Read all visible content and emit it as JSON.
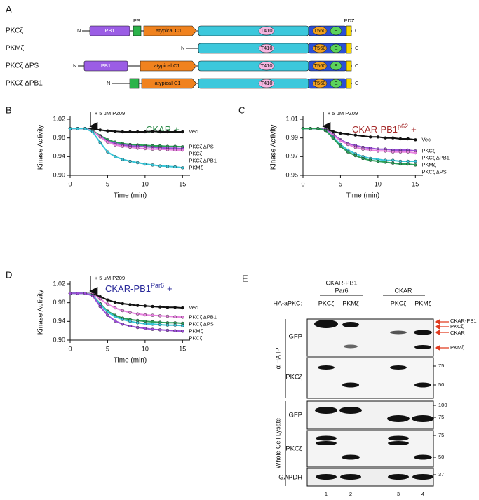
{
  "diagram": {
    "panel": "A",
    "ps_label": "PS",
    "pdz_label": "PDZ",
    "rows": [
      {
        "label": "PKCζ",
        "n": "N",
        "pb1": "PB1",
        "c1": "atypical C1",
        "t410": "T410",
        "t560": "T560",
        "e": "E",
        "c": "C"
      },
      {
        "label": "PKMζ",
        "n": "N",
        "t410": "T410",
        "t560": "T560",
        "e": "E",
        "c": "C"
      },
      {
        "label": "PKCζ ΔPS",
        "n": "N",
        "pb1": "PB1",
        "c1": "atypical C1",
        "t410": "T410",
        "t560": "T560",
        "e": "E",
        "c": "C"
      },
      {
        "label": "PKCζ ΔPB1",
        "n": "N",
        "c1": "atypical C1",
        "t410": "T410",
        "t560": "T560",
        "e": "E",
        "c": "C"
      }
    ]
  },
  "chart_data": [
    {
      "type": "line",
      "panel": "B",
      "title": "CKAR",
      "title_suffix": "+",
      "title_color": "#2e8b4a",
      "annotation": {
        "text": "+ 5 μM PZ09",
        "x": 2.7
      },
      "x_label": "Time (min)",
      "y_label": "Kinase Activity",
      "x": [
        0,
        1,
        2,
        3,
        4,
        5,
        6,
        7,
        8,
        9,
        10,
        11,
        12,
        13,
        14,
        15
      ],
      "xlim": [
        0,
        16
      ],
      "xticks": [
        0,
        5,
        10,
        15
      ],
      "ylim": [
        0.9,
        1.02
      ],
      "yticks": [
        {
          "value": 0.9,
          "label": "0.90"
        },
        0.94,
        0.98,
        1.02
      ],
      "series": [
        {
          "name": "Vec",
          "color": "#111111",
          "values": [
            1.0,
            1.0,
            1.0,
            0.999,
            0.997,
            0.995,
            0.994,
            0.993,
            0.993,
            0.993,
            0.993,
            0.994,
            0.993,
            0.993,
            0.993,
            0.993
          ]
        },
        {
          "name": "PKCζ ΔPS",
          "color": "#2ca05a",
          "values": [
            1.0,
            1.0,
            1.0,
            0.996,
            0.985,
            0.976,
            0.971,
            0.968,
            0.966,
            0.965,
            0.964,
            0.963,
            0.963,
            0.962,
            0.962,
            0.961
          ]
        },
        {
          "name": "PKCζ",
          "color": "#9b4fd6",
          "values": [
            1.0,
            1.0,
            1.0,
            0.995,
            0.983,
            0.973,
            0.968,
            0.965,
            0.963,
            0.962,
            0.961,
            0.96,
            0.959,
            0.958,
            0.958,
            0.957
          ]
        },
        {
          "name": "PKCζ ΔPB1",
          "color": "#e883e0",
          "values": [
            1.0,
            1.0,
            1.0,
            0.995,
            0.982,
            0.971,
            0.965,
            0.962,
            0.96,
            0.958,
            0.957,
            0.956,
            0.956,
            0.955,
            0.954,
            0.954
          ]
        },
        {
          "name": "PKMζ",
          "color": "#39c6d8",
          "values": [
            1.0,
            1.0,
            1.0,
            0.993,
            0.97,
            0.95,
            0.94,
            0.934,
            0.93,
            0.927,
            0.924,
            0.922,
            0.92,
            0.919,
            0.918,
            0.916
          ]
        }
      ]
    },
    {
      "type": "line",
      "panel": "C",
      "title": "CKAR-PB1",
      "title_superscript": "p62",
      "title_suffix": "+",
      "title_color": "#a52a2a",
      "annotation": {
        "text": "+ 5 μM PZ09",
        "x": 2.7
      },
      "x_label": "Time (min)",
      "y_label": "Kinase Activity",
      "x": [
        0,
        1,
        2,
        3,
        4,
        5,
        6,
        7,
        8,
        9,
        10,
        11,
        12,
        13,
        14,
        15
      ],
      "xlim": [
        0,
        16
      ],
      "xticks": [
        0,
        5,
        10,
        15
      ],
      "ylim": [
        0.95,
        1.01
      ],
      "yticks": [
        0.95,
        0.97,
        0.99,
        1.01
      ],
      "series": [
        {
          "name": "Vec",
          "color": "#111111",
          "values": [
            1.0,
            1.0,
            1.0,
            0.999,
            0.997,
            0.995,
            0.994,
            0.993,
            0.992,
            0.991,
            0.991,
            0.99,
            0.99,
            0.989,
            0.989,
            0.988
          ]
        },
        {
          "name": "PKCζ",
          "color": "#9b4fd6",
          "values": [
            1.0,
            1.0,
            1.0,
            0.999,
            0.994,
            0.988,
            0.984,
            0.982,
            0.98,
            0.979,
            0.978,
            0.978,
            0.977,
            0.977,
            0.977,
            0.976
          ]
        },
        {
          "name": "PKCζ ΔPB1",
          "color": "#e883e0",
          "values": [
            1.0,
            1.0,
            1.0,
            0.998,
            0.993,
            0.987,
            0.983,
            0.98,
            0.978,
            0.977,
            0.976,
            0.976,
            0.975,
            0.975,
            0.975,
            0.974
          ]
        },
        {
          "name": "PKMζ",
          "color": "#39c6d8",
          "values": [
            1.0,
            1.0,
            1.0,
            0.998,
            0.991,
            0.983,
            0.977,
            0.973,
            0.97,
            0.968,
            0.967,
            0.966,
            0.966,
            0.965,
            0.965,
            0.965
          ]
        },
        {
          "name": "PKCζ ΔPS",
          "color": "#2ca05a",
          "values": [
            1.0,
            1.0,
            1.0,
            0.998,
            0.99,
            0.981,
            0.975,
            0.971,
            0.968,
            0.966,
            0.965,
            0.964,
            0.963,
            0.962,
            0.962,
            0.961
          ]
        }
      ]
    },
    {
      "type": "line",
      "panel": "D",
      "title": "CKAR-PB1",
      "title_superscript": "Par6",
      "title_suffix": "+",
      "title_color": "#2a2a9a",
      "annotation": {
        "text": "+ 5 μM PZ09",
        "x": 2.7
      },
      "x_label": "Time (min)",
      "y_label": "Kinase Activity",
      "x": [
        0,
        1,
        2,
        3,
        4,
        5,
        6,
        7,
        8,
        9,
        10,
        11,
        12,
        13,
        14,
        15
      ],
      "xlim": [
        0,
        16
      ],
      "xticks": [
        0,
        5,
        10,
        15
      ],
      "ylim": [
        0.9,
        1.02
      ],
      "yticks": [
        {
          "value": 0.9,
          "label": "0.90"
        },
        0.94,
        0.98,
        1.02
      ],
      "series": [
        {
          "name": "Vec",
          "color": "#111111",
          "values": [
            1.0,
            1.0,
            1.0,
            0.999,
            0.993,
            0.986,
            0.981,
            0.978,
            0.976,
            0.974,
            0.973,
            0.972,
            0.971,
            0.97,
            0.97,
            0.969
          ]
        },
        {
          "name": "PKCζ ΔPB1",
          "color": "#e883e0",
          "values": [
            1.0,
            1.0,
            1.0,
            0.998,
            0.988,
            0.977,
            0.969,
            0.963,
            0.959,
            0.956,
            0.954,
            0.953,
            0.952,
            0.951,
            0.95,
            0.949
          ]
        },
        {
          "name": "PKCζ ΔPS",
          "color": "#2ca05a",
          "values": [
            1.0,
            1.0,
            1.0,
            0.996,
            0.978,
            0.962,
            0.953,
            0.947,
            0.944,
            0.942,
            0.94,
            0.939,
            0.938,
            0.937,
            0.937,
            0.936
          ]
        },
        {
          "name": "PKMζ",
          "color": "#39c6d8",
          "values": [
            1.0,
            1.0,
            1.0,
            0.996,
            0.977,
            0.96,
            0.95,
            0.944,
            0.94,
            0.937,
            0.935,
            0.934,
            0.933,
            0.932,
            0.932,
            0.931
          ]
        },
        {
          "name": "PKCζ",
          "color": "#9b4fd6",
          "values": [
            1.0,
            1.0,
            1.0,
            0.995,
            0.972,
            0.953,
            0.941,
            0.934,
            0.93,
            0.927,
            0.925,
            0.923,
            0.922,
            0.921,
            0.92,
            0.919
          ]
        }
      ]
    }
  ],
  "blot": {
    "panel": "E",
    "lane_header": "HA-aPKC:",
    "groups": [
      {
        "lines": [
          "CKAR-PB1",
          "Par6"
        ]
      },
      {
        "lines": [
          "CKAR"
        ]
      }
    ],
    "lanes": [
      "PKCζ",
      "PKMζ",
      "PKCζ",
      "PKMζ"
    ],
    "sections": [
      {
        "label": "α HA IP",
        "rows": [
          {
            "label": "GFP",
            "markers": []
          },
          {
            "label": "PKCζ",
            "markers": [
              75,
              50
            ]
          }
        ]
      },
      {
        "label": "Whole Cell Lysate",
        "rows": [
          {
            "label": "GFP",
            "markers": [
              100,
              75
            ]
          },
          {
            "label": "PKCζ",
            "markers": [
              75,
              50
            ]
          },
          {
            "label": "GAPDH",
            "markers": [
              37
            ]
          }
        ]
      }
    ],
    "band_labels": [
      "CKAR-PB1",
      "PKCζ",
      "CKAR",
      "PKMζ"
    ],
    "lane_numbers": [
      1,
      2,
      3,
      4
    ]
  }
}
